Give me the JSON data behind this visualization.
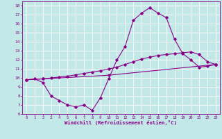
{
  "xlabel": "Windchill (Refroidissement éolien,°C)",
  "bg_color": "#c2e8e8",
  "line_color": "#880088",
  "grid_color": "#ffffff",
  "ylim": [
    6,
    18.5
  ],
  "xlim": [
    -0.5,
    23.5
  ],
  "yticks": [
    6,
    7,
    8,
    9,
    10,
    11,
    12,
    13,
    14,
    15,
    16,
    17,
    18
  ],
  "xticks": [
    0,
    1,
    2,
    3,
    4,
    5,
    6,
    7,
    8,
    9,
    10,
    11,
    12,
    13,
    14,
    15,
    16,
    17,
    18,
    19,
    20,
    21,
    22,
    23
  ],
  "line1_x": [
    0,
    1,
    2,
    3,
    4,
    5,
    6,
    7,
    8,
    9,
    10,
    11,
    12,
    13,
    14,
    15,
    16,
    17,
    18,
    19,
    20,
    21,
    22,
    23
  ],
  "line1_y": [
    9.8,
    9.9,
    9.5,
    8.0,
    7.5,
    7.0,
    6.8,
    7.0,
    6.4,
    7.8,
    9.9,
    12.0,
    13.5,
    16.4,
    17.2,
    17.8,
    17.2,
    16.7,
    14.3,
    12.7,
    12.0,
    11.2,
    11.3,
    11.5
  ],
  "line2_x": [
    0,
    2,
    3,
    4,
    5,
    6,
    7,
    8,
    9,
    10,
    11,
    12,
    13,
    14,
    15,
    16,
    17,
    18,
    19,
    20,
    21,
    22,
    23
  ],
  "line2_y": [
    9.8,
    9.9,
    10.0,
    10.1,
    10.2,
    10.35,
    10.5,
    10.65,
    10.8,
    11.0,
    11.2,
    11.5,
    11.8,
    12.1,
    12.3,
    12.5,
    12.6,
    12.7,
    12.8,
    12.9,
    12.6,
    11.8,
    11.5
  ],
  "line3_x": [
    0,
    2,
    10,
    23
  ],
  "line3_y": [
    9.8,
    9.9,
    10.3,
    11.5
  ]
}
